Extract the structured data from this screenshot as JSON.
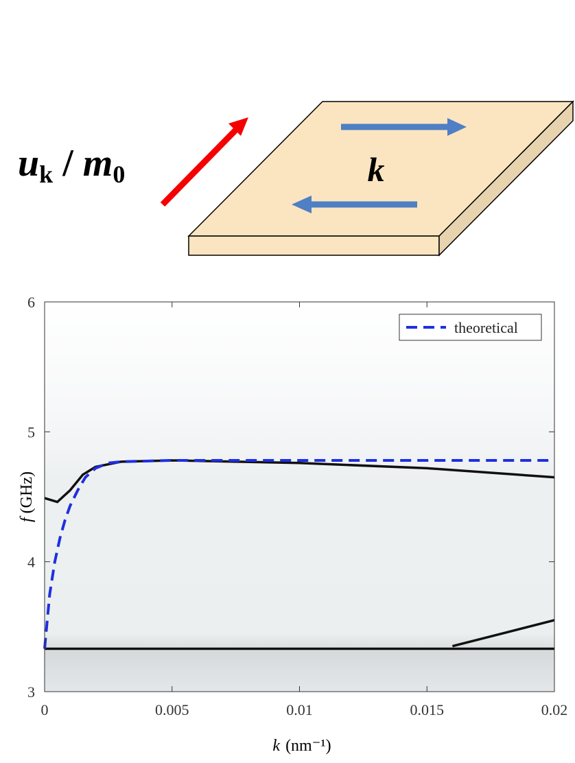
{
  "diagram": {
    "field_symbol": "u",
    "field_subscript": "k",
    "separator": " / ",
    "ref_symbol": "m",
    "ref_subscript": "0",
    "wave_label": "k"
  },
  "chart_data": {
    "type": "line",
    "xlabel_symbol": "k",
    "xlabel_unit": "(nm⁻¹)",
    "ylabel_symbol": "f",
    "ylabel_unit": "(GHz)",
    "xlim": [
      0,
      0.02
    ],
    "xticks": [
      0,
      0.005,
      0.01,
      0.015,
      0.02
    ],
    "ylim": [
      3,
      6
    ],
    "yticks": [
      3,
      4,
      5,
      6
    ],
    "legend": "top-right",
    "series": [
      {
        "name": "theoretical",
        "color": "#1f2fe0",
        "dashed": true,
        "x": [
          0,
          0.0002,
          0.0004,
          0.0006,
          0.0008,
          0.001,
          0.0013,
          0.0016,
          0.002,
          0.0025,
          0.003,
          0.005,
          0.01,
          0.015,
          0.02
        ],
        "values": [
          3.33,
          3.75,
          4.0,
          4.18,
          4.32,
          4.43,
          4.55,
          4.65,
          4.72,
          4.76,
          4.77,
          4.78,
          4.78,
          4.78,
          4.78
        ]
      },
      {
        "color": "#111111",
        "x": [
          0,
          0.0005,
          0.001,
          0.0015,
          0.002,
          0.003,
          0.005,
          0.01,
          0.015,
          0.02
        ],
        "values": [
          4.49,
          4.46,
          4.55,
          4.67,
          4.73,
          4.77,
          4.78,
          4.76,
          4.72,
          4.65
        ]
      },
      {
        "color": "#111111",
        "x": [
          0,
          0.02
        ],
        "values": [
          3.33,
          3.33
        ]
      },
      {
        "color": "#111111",
        "x": [
          0.016,
          0.018,
          0.02
        ],
        "values": [
          3.35,
          3.45,
          3.55
        ]
      }
    ]
  }
}
